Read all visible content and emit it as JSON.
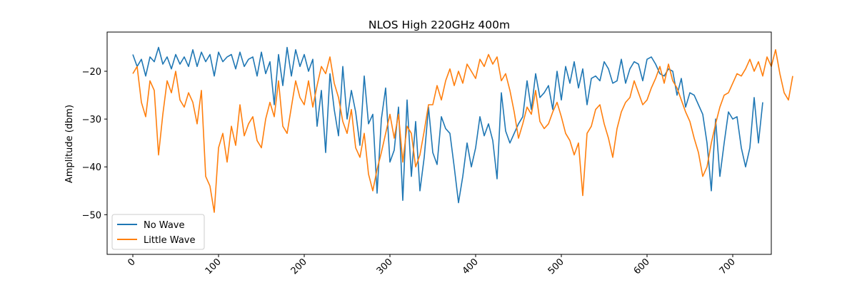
{
  "chart_data": {
    "type": "line",
    "title": "NLOS High 220GHz 400m",
    "xlabel": "",
    "ylabel": "Amplitude (dbm)",
    "xlim": [
      -30,
      745
    ],
    "ylim": [
      -58.3,
      -11.8
    ],
    "x_ticks": [
      0,
      100,
      200,
      300,
      400,
      500,
      600,
      700
    ],
    "x_tick_labels": [
      "0",
      "100",
      "200",
      "300",
      "400",
      "500",
      "600",
      "700"
    ],
    "y_ticks": [
      -50,
      -40,
      -30,
      -20
    ],
    "y_tick_labels": [
      "−50",
      "−40",
      "−30",
      "−20"
    ],
    "grid": false,
    "legend_position": "lower-left",
    "series": [
      {
        "name": "No Wave",
        "color": "#1f77b4",
        "x_start": 0,
        "x_step": 5,
        "values": [
          -16.5,
          -19.0,
          -17.5,
          -21.0,
          -17.0,
          -18.0,
          -15.0,
          -18.5,
          -17.0,
          -19.5,
          -16.5,
          -18.5,
          -17.0,
          -19.0,
          -15.5,
          -19.0,
          -16.0,
          -18.0,
          -16.5,
          -21.0,
          -16.0,
          -18.0,
          -17.0,
          -16.5,
          -19.5,
          -16.0,
          -19.0,
          -17.5,
          -17.0,
          -21.0,
          -16.0,
          -20.5,
          -18.0,
          -27.0,
          -16.5,
          -23.0,
          -15.0,
          -21.0,
          -15.5,
          -19.0,
          -16.5,
          -20.0,
          -17.5,
          -31.5,
          -24.0,
          -37.0,
          -20.5,
          -28.0,
          -33.5,
          -19.0,
          -30.0,
          -24.0,
          -28.5,
          -35.5,
          -21.0,
          -31.0,
          -29.0,
          -45.5,
          -30.0,
          -23.5,
          -39.0,
          -36.5,
          -27.5,
          -47.0,
          -26.0,
          -42.0,
          -30.5,
          -45.0,
          -38.0,
          -27.5,
          -37.0,
          -39.5,
          -29.5,
          -32.0,
          -33.0,
          -40.0,
          -47.5,
          -42.0,
          -35.0,
          -40.0,
          -36.0,
          -29.5,
          -33.5,
          -31.0,
          -34.5,
          -42.5,
          -24.5,
          -32.5,
          -35.0,
          -33.0,
          -31.0,
          -29.5,
          -22.0,
          -28.0,
          -20.5,
          -25.5,
          -24.5,
          -23.0,
          -28.0,
          -20.0,
          -26.0,
          -19.0,
          -22.5,
          -18.0,
          -23.5,
          -19.5,
          -27.0,
          -21.5,
          -21.0,
          -22.0,
          -18.0,
          -19.5,
          -22.5,
          -22.0,
          -17.5,
          -22.5,
          -19.5,
          -18.0,
          -18.5,
          -22.0,
          -17.5,
          -17.0,
          -18.5,
          -20.5,
          -21.0,
          -19.5,
          -20.0,
          -25.0,
          -21.5,
          -27.5,
          -24.5,
          -25.0,
          -27.0,
          -29.0,
          -35.0,
          -45.0,
          -30.0,
          -42.0,
          -35.0,
          -28.5,
          -30.0,
          -29.5,
          -36.0,
          -40.0,
          -36.0,
          -25.5,
          -35.0,
          -26.5
        ],
        "note_values_read_off_axes": true
      },
      {
        "name": "Little Wave",
        "color": "#ff7f0e",
        "x_start": 0,
        "x_step": 5,
        "values": [
          -20.5,
          -19.0,
          -26.5,
          -29.5,
          -22.0,
          -24.0,
          -37.5,
          -29.0,
          -22.0,
          -24.5,
          -20.0,
          -26.0,
          -27.5,
          -24.5,
          -26.5,
          -31.0,
          -24.0,
          -42.0,
          -44.0,
          -49.5,
          -36.0,
          -33.0,
          -39.0,
          -31.5,
          -35.5,
          -27.0,
          -33.5,
          -31.0,
          -29.5,
          -34.5,
          -36.0,
          -30.0,
          -26.5,
          -29.5,
          -22.0,
          -31.5,
          -33.0,
          -27.5,
          -22.0,
          -25.5,
          -27.0,
          -22.0,
          -27.5,
          -23.0,
          -19.0,
          -20.5,
          -17.0,
          -22.5,
          -25.5,
          -30.5,
          -33.0,
          -28.0,
          -36.0,
          -38.0,
          -33.0,
          -41.5,
          -45.0,
          -40.5,
          -37.0,
          -33.0,
          -29.0,
          -34.0,
          -29.0,
          -39.0,
          -31.5,
          -33.0,
          -40.0,
          -37.5,
          -32.5,
          -27.0,
          -27.0,
          -23.0,
          -26.0,
          -22.0,
          -19.5,
          -23.0,
          -20.0,
          -22.5,
          -18.5,
          -20.0,
          -21.5,
          -17.5,
          -19.0,
          -16.5,
          -18.5,
          -17.0,
          -22.0,
          -20.5,
          -24.0,
          -28.5,
          -34.0,
          -31.0,
          -27.5,
          -29.0,
          -24.0,
          -30.5,
          -32.0,
          -31.0,
          -28.5,
          -26.5,
          -29.5,
          -33.0,
          -34.5,
          -37.5,
          -35.0,
          -46.0,
          -33.0,
          -31.5,
          -28.0,
          -27.0,
          -31.0,
          -34.0,
          -38.0,
          -32.0,
          -28.5,
          -26.5,
          -25.5,
          -22.0,
          -24.5,
          -27.0,
          -26.0,
          -23.5,
          -21.5,
          -19.0,
          -22.5,
          -18.5,
          -22.0,
          -23.5,
          -26.0,
          -28.5,
          -30.5,
          -34.0,
          -37.0,
          -42.0,
          -40.0,
          -35.0,
          -31.0,
          -27.5,
          -25.0,
          -24.5,
          -22.5,
          -20.5,
          -21.0,
          -19.5,
          -17.5,
          -20.0,
          -18.0,
          -21.0,
          -17.0,
          -19.0,
          -15.5,
          -20.5,
          -24.5,
          -26.0,
          -21.0
        ]
      }
    ]
  },
  "legend": {
    "items": [
      {
        "label": "No Wave",
        "color": "#1f77b4"
      },
      {
        "label": "Little Wave",
        "color": "#ff7f0e"
      }
    ]
  }
}
